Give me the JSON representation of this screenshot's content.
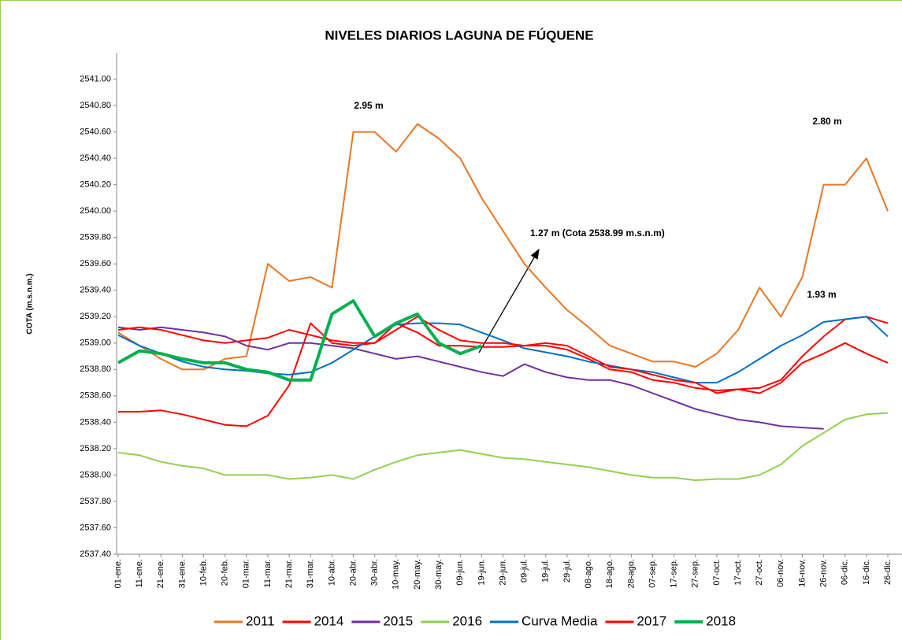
{
  "chart_data": {
    "type": "line",
    "title": "NIVELES DIARIOS LAGUNA DE FÚQUENE",
    "y_label": "COTA (m.s.n.m.)",
    "categories": [
      "01-ene.",
      "11-ene.",
      "21-ene.",
      "31-ene.",
      "10-feb.",
      "20-feb.",
      "01-mar.",
      "11-mar.",
      "21-mar.",
      "31-mar.",
      "10-abr.",
      "20-abr.",
      "30-abr.",
      "10-may.",
      "20-may.",
      "30-may.",
      "09-jun.",
      "19-jun.",
      "29-jun.",
      "09-jul.",
      "19-jul.",
      "29-jul.",
      "08-ago.",
      "18-ago.",
      "28-ago.",
      "07-sep.",
      "17-sep.",
      "27-sep.",
      "07-oct.",
      "17-oct.",
      "27-oct.",
      "06-nov.",
      "16-nov.",
      "26-nov.",
      "06-dic.",
      "16-dic.",
      "26-dic."
    ],
    "ylim": [
      2537.4,
      2541.2
    ],
    "yticks": [
      {
        "value": 2537.4,
        "label": "2537.40"
      },
      {
        "value": 2537.6,
        "label": "2537.60"
      },
      {
        "value": 2537.8,
        "label": "2537.80"
      },
      {
        "value": 2538.0,
        "label": "2538.00"
      },
      {
        "value": 2538.2,
        "label": "2538.20"
      },
      {
        "value": 2538.4,
        "label": "2538.40"
      },
      {
        "value": 2538.6,
        "label": "2538.60"
      },
      {
        "value": 2538.8,
        "label": "2538.80"
      },
      {
        "value": 2539.0,
        "label": "2539.00"
      },
      {
        "value": 2539.2,
        "label": "2539.20"
      },
      {
        "value": 2539.4,
        "label": "2539.40"
      },
      {
        "value": 2539.6,
        "label": "2539.60"
      },
      {
        "value": 2539.8,
        "label": "2539.80"
      },
      {
        "value": 2540.0,
        "label": "2540.00"
      },
      {
        "value": 2540.2,
        "label": "2540.20"
      },
      {
        "value": 2540.4,
        "label": "2540.40"
      },
      {
        "value": 2540.6,
        "label": "2540.60"
      },
      {
        "value": 2540.8,
        "label": "2540.80"
      },
      {
        "value": 2541.0,
        "label": "2541.00"
      }
    ],
    "grid": false,
    "legend": "bottom",
    "series": [
      {
        "name": "2011",
        "color": "#e87722",
        "line_width": 2,
        "values": [
          2539.08,
          2538.98,
          2538.88,
          2538.8,
          2538.8,
          2538.88,
          2538.9,
          2539.6,
          2539.47,
          2539.5,
          2539.42,
          2540.6,
          2540.6,
          2540.45,
          2540.66,
          2540.55,
          2540.4,
          2540.1,
          2539.85,
          2539.6,
          2539.42,
          2539.25,
          2539.12,
          2538.98,
          2538.92,
          2538.86,
          2538.86,
          2538.82,
          2538.92,
          2539.1,
          2539.42,
          2539.2,
          2539.5,
          2540.2,
          2540.2,
          2540.4,
          2540.0
        ]
      },
      {
        "name": "2014",
        "color": "#ff0000",
        "line_width": 2,
        "values": [
          2538.48,
          2538.48,
          2538.49,
          2538.46,
          2538.42,
          2538.38,
          2538.37,
          2538.45,
          2538.68,
          2539.15,
          2539.0,
          2538.98,
          2539.0,
          2539.15,
          2539.08,
          2538.98,
          2538.98,
          2538.97,
          2538.97,
          2538.98,
          2538.98,
          2538.95,
          2538.88,
          2538.8,
          2538.78,
          2538.72,
          2538.7,
          2538.66,
          2538.64,
          2538.65,
          2538.66,
          2538.72,
          2538.9,
          2539.05,
          2539.18,
          2539.2,
          2539.15
        ]
      },
      {
        "name": "2015",
        "color": "#7030a0",
        "line_width": 2,
        "values": [
          2539.12,
          2539.1,
          2539.12,
          2539.1,
          2539.08,
          2539.05,
          2538.98,
          2538.95,
          2539.0,
          2539.0,
          2538.98,
          2538.96,
          2538.92,
          2538.88,
          2538.9,
          2538.86,
          2538.82,
          2538.78,
          2538.75,
          2538.84,
          2538.78,
          2538.74,
          2538.72,
          2538.72,
          2538.68,
          2538.62,
          2538.56,
          2538.5,
          2538.46,
          2538.42,
          2538.4,
          2538.37,
          2538.36,
          2538.35,
          null,
          null,
          null
        ]
      },
      {
        "name": "2016",
        "color": "#92d050",
        "line_width": 2,
        "values": [
          2538.17,
          2538.15,
          2538.1,
          2538.07,
          2538.05,
          2538.0,
          2538.0,
          2538.0,
          2537.97,
          2537.98,
          2538.0,
          2537.97,
          2538.04,
          2538.1,
          2538.15,
          2538.17,
          2538.19,
          2538.16,
          2538.13,
          2538.12,
          2538.1,
          2538.08,
          2538.06,
          2538.03,
          2538.0,
          2537.98,
          2537.98,
          2537.96,
          2537.97,
          2537.97,
          2538.0,
          2538.08,
          2538.22,
          2538.32,
          2538.42,
          2538.46,
          2538.47
        ]
      },
      {
        "name": "Curva Media",
        "color": "#0070c0",
        "line_width": 2,
        "values": [
          2539.06,
          2538.98,
          2538.92,
          2538.86,
          2538.82,
          2538.8,
          2538.79,
          2538.77,
          2538.76,
          2538.78,
          2538.85,
          2538.95,
          2539.05,
          2539.14,
          2539.15,
          2539.15,
          2539.14,
          2539.08,
          2539.02,
          2538.96,
          2538.93,
          2538.9,
          2538.86,
          2538.83,
          2538.8,
          2538.78,
          2538.74,
          2538.7,
          2538.7,
          2538.78,
          2538.88,
          2538.98,
          2539.06,
          2539.16,
          2539.18,
          2539.2,
          2539.05
        ]
      },
      {
        "name": "2017",
        "color": "#ff0000",
        "line_width": 2,
        "values": [
          2539.1,
          2539.12,
          2539.1,
          2539.06,
          2539.02,
          2539.0,
          2539.02,
          2539.04,
          2539.1,
          2539.06,
          2539.02,
          2539.0,
          2539.0,
          2539.1,
          2539.2,
          2539.1,
          2539.02,
          2539.0,
          2539.0,
          2538.98,
          2539.0,
          2538.98,
          2538.9,
          2538.82,
          2538.8,
          2538.76,
          2538.72,
          2538.7,
          2538.62,
          2538.65,
          2538.62,
          2538.7,
          2538.85,
          2538.92,
          2539.0,
          2538.92,
          2538.85
        ]
      },
      {
        "name": "2018",
        "color": "#00b050",
        "line_width": 4,
        "values": [
          2538.85,
          2538.94,
          2538.92,
          2538.88,
          2538.85,
          2538.85,
          2538.8,
          2538.78,
          2538.72,
          2538.72,
          2539.22,
          2539.32,
          2539.05,
          2539.15,
          2539.22,
          2539.0,
          2538.92,
          2538.98,
          null,
          null,
          null,
          null,
          null,
          null,
          null,
          null,
          null,
          null,
          null,
          null,
          null,
          null,
          null,
          null,
          null,
          null,
          null
        ]
      }
    ],
    "annotations": [
      {
        "text": "2.95 m"
      },
      {
        "text": "2.80 m"
      },
      {
        "text": "1.93 m"
      },
      {
        "text": "1.27 m (Cota 2538.99 m.s.n.m)"
      }
    ]
  }
}
